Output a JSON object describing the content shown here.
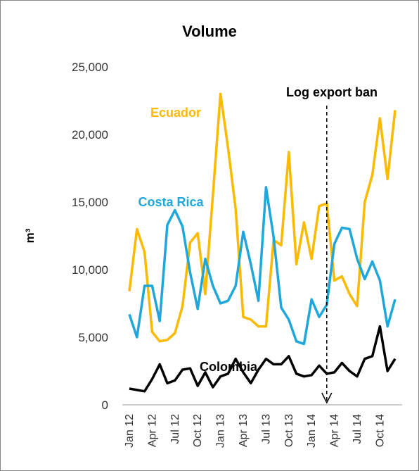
{
  "chart_data": {
    "type": "line",
    "title": "Volume",
    "y_label": "m³",
    "categories": [
      "Jan 12",
      null,
      null,
      "Apr 12",
      null,
      null,
      "Jul 12",
      null,
      null,
      "Oct 12",
      null,
      null,
      "Jan 13",
      null,
      null,
      "Apr 13",
      null,
      null,
      "Jul 13",
      null,
      null,
      "Oct 13",
      null,
      null,
      "Jan 14",
      null,
      null,
      "Apr 14",
      null,
      null,
      "Jul 14",
      null,
      null,
      "Oct 14",
      null,
      null
    ],
    "series": [
      {
        "name": "Ecuador",
        "color": "#fbb900",
        "values": [
          8400,
          13000,
          11300,
          5400,
          4700,
          4800,
          5300,
          7300,
          12000,
          12700,
          8200,
          15500,
          23000,
          19000,
          14500,
          6500,
          6300,
          5800,
          5800,
          12200,
          11800,
          18700,
          10400,
          13500,
          10800,
          14700,
          14900,
          9200,
          9500,
          8200,
          7300,
          15000,
          17000,
          21200,
          16700,
          21800
        ]
      },
      {
        "name": "Costa Rica",
        "color": "#1fa7dc",
        "values": [
          6700,
          5000,
          8800,
          8800,
          6200,
          13300,
          14400,
          13200,
          9800,
          7100,
          10800,
          8800,
          7500,
          7700,
          8800,
          12800,
          10400,
          7700,
          16100,
          12400,
          7200,
          6300,
          4700,
          4500,
          7800,
          6500,
          7400,
          11900,
          13100,
          13000,
          10800,
          9300,
          10600,
          9200,
          5800,
          7800
        ]
      },
      {
        "name": "Colombia",
        "color": "#000000",
        "values": [
          1200,
          1100,
          1000,
          1900,
          3000,
          1600,
          1800,
          2600,
          2700,
          1400,
          2400,
          1300,
          2100,
          2300,
          3400,
          2400,
          1600,
          2600,
          3400,
          3000,
          3000,
          3600,
          2300,
          2100,
          2200,
          2900,
          2300,
          2400,
          3100,
          2500,
          2100,
          3400,
          3600,
          5800,
          2500,
          3400
        ]
      }
    ],
    "ylim": [
      0,
      25000
    ],
    "yticks": [
      0,
      {
        "value": 5000,
        "label": "5,000"
      },
      {
        "value": 10000,
        "label": "10,000"
      },
      {
        "value": 15000,
        "label": "15,000"
      },
      {
        "value": 20000,
        "label": "20,000"
      },
      {
        "value": 25000,
        "label": "25,000"
      }
    ],
    "annotation": {
      "text": "Log export ban",
      "category_index": 26
    }
  }
}
